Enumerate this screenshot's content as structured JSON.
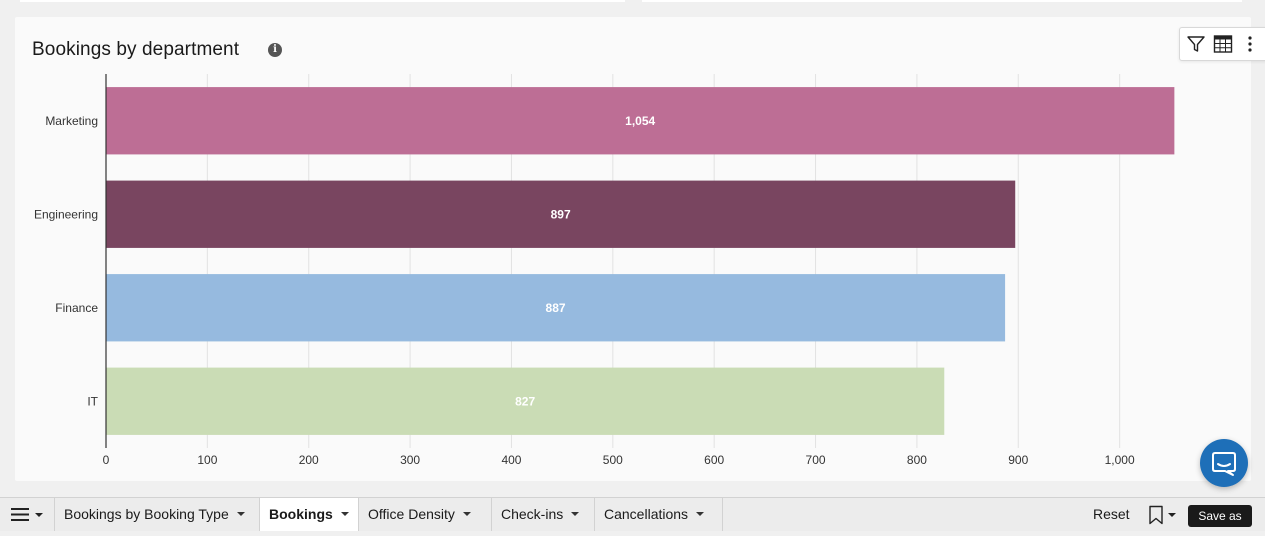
{
  "card": {
    "title": "Bookings by department",
    "info_icon": "info-icon",
    "toolbar": [
      "filter-icon",
      "table-icon",
      "more-vertical-icon"
    ]
  },
  "chart_data": {
    "type": "bar",
    "orientation": "horizontal",
    "title": "Bookings by department",
    "categories": [
      "Marketing",
      "Engineering",
      "Finance",
      "IT"
    ],
    "values": [
      1054,
      897,
      887,
      827
    ],
    "value_labels": [
      "1,054",
      "897",
      "887",
      "827"
    ],
    "colors": [
      "#bd6e95",
      "#794560",
      "#96badf",
      "#cadcb5"
    ],
    "xlim": [
      0,
      1100
    ],
    "xticks": [
      0,
      100,
      200,
      300,
      400,
      500,
      600,
      700,
      800,
      900,
      1000
    ],
    "xtick_labels": [
      "0",
      "100",
      "200",
      "300",
      "400",
      "500",
      "600",
      "700",
      "800",
      "900",
      "1,000"
    ],
    "xlabel": "",
    "ylabel": "",
    "grid": true,
    "legend": false
  },
  "tabbar": {
    "menu_icon": "menu-icon",
    "tabs": [
      {
        "label": "Bookings by Booking Type",
        "active": false
      },
      {
        "label": "Bookings",
        "active": true
      },
      {
        "label": "Office Density",
        "active": false
      },
      {
        "label": "Check-ins",
        "active": false
      },
      {
        "label": "Cancellations",
        "active": false
      }
    ],
    "reset_label": "Reset",
    "bookmark_icon": "bookmark-icon",
    "save_label": "Save as"
  },
  "chat_icon": "chat-icon"
}
